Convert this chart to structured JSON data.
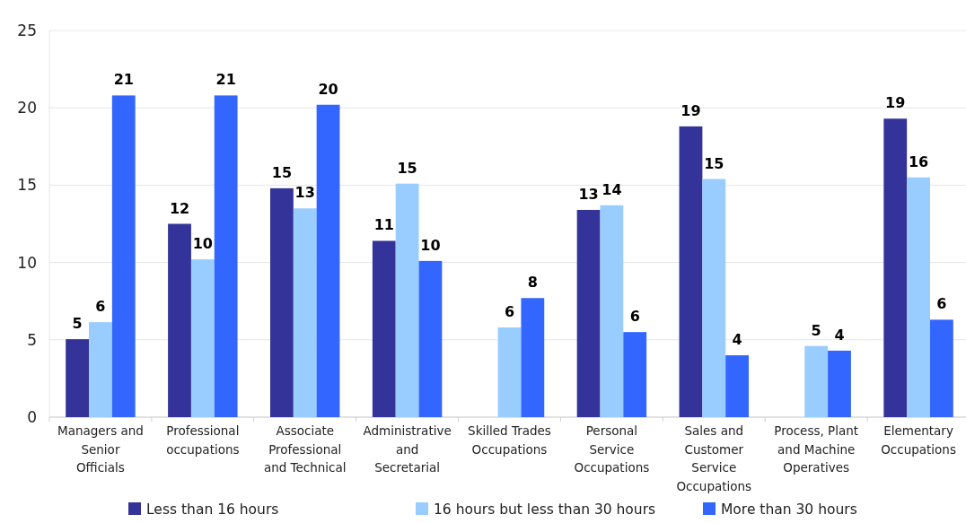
{
  "chart_data": {
    "type": "bar",
    "categories": [
      "Managers and Senior Officials",
      "Professional occupations",
      "Associate Professional and Technical",
      "Administrative and Secretarial",
      "Skilled Trades Occupations",
      "Personal Service Occupations",
      "Sales and Customer Service Occupations",
      "Process, Plant and Machine Operatives",
      "Elementary Occupations"
    ],
    "series": [
      {
        "name": "Less than 16 hours",
        "color": "#333399",
        "values": [
          5.04,
          12.5,
          14.8,
          11.4,
          null,
          13.4,
          18.8,
          null,
          19.3
        ],
        "value_labels": [
          "5",
          "12",
          "15",
          "11",
          null,
          "13",
          "19",
          null,
          "19"
        ]
      },
      {
        "name": "16 hours but less than 30 hours",
        "color": "#99ccff",
        "values": [
          6.14,
          10.2,
          13.5,
          15.1,
          5.8,
          13.7,
          15.4,
          4.6,
          15.5
        ],
        "value_labels": [
          "6",
          "10",
          "13",
          "15",
          "6",
          "14",
          "15",
          "5",
          "16"
        ]
      },
      {
        "name": "More than 30 hours",
        "color": "#3366ff",
        "values": [
          20.8,
          20.8,
          20.2,
          10.1,
          7.7,
          5.5,
          4.0,
          4.3,
          6.3
        ],
        "value_labels": [
          "21",
          "21",
          "20",
          "10",
          "8",
          "6",
          "4",
          "4",
          "6"
        ]
      }
    ],
    "ylim": [
      0,
      25
    ],
    "yticks": [
      0,
      5,
      10,
      15,
      20,
      25
    ],
    "grid": "y",
    "legend": "bottom"
  }
}
